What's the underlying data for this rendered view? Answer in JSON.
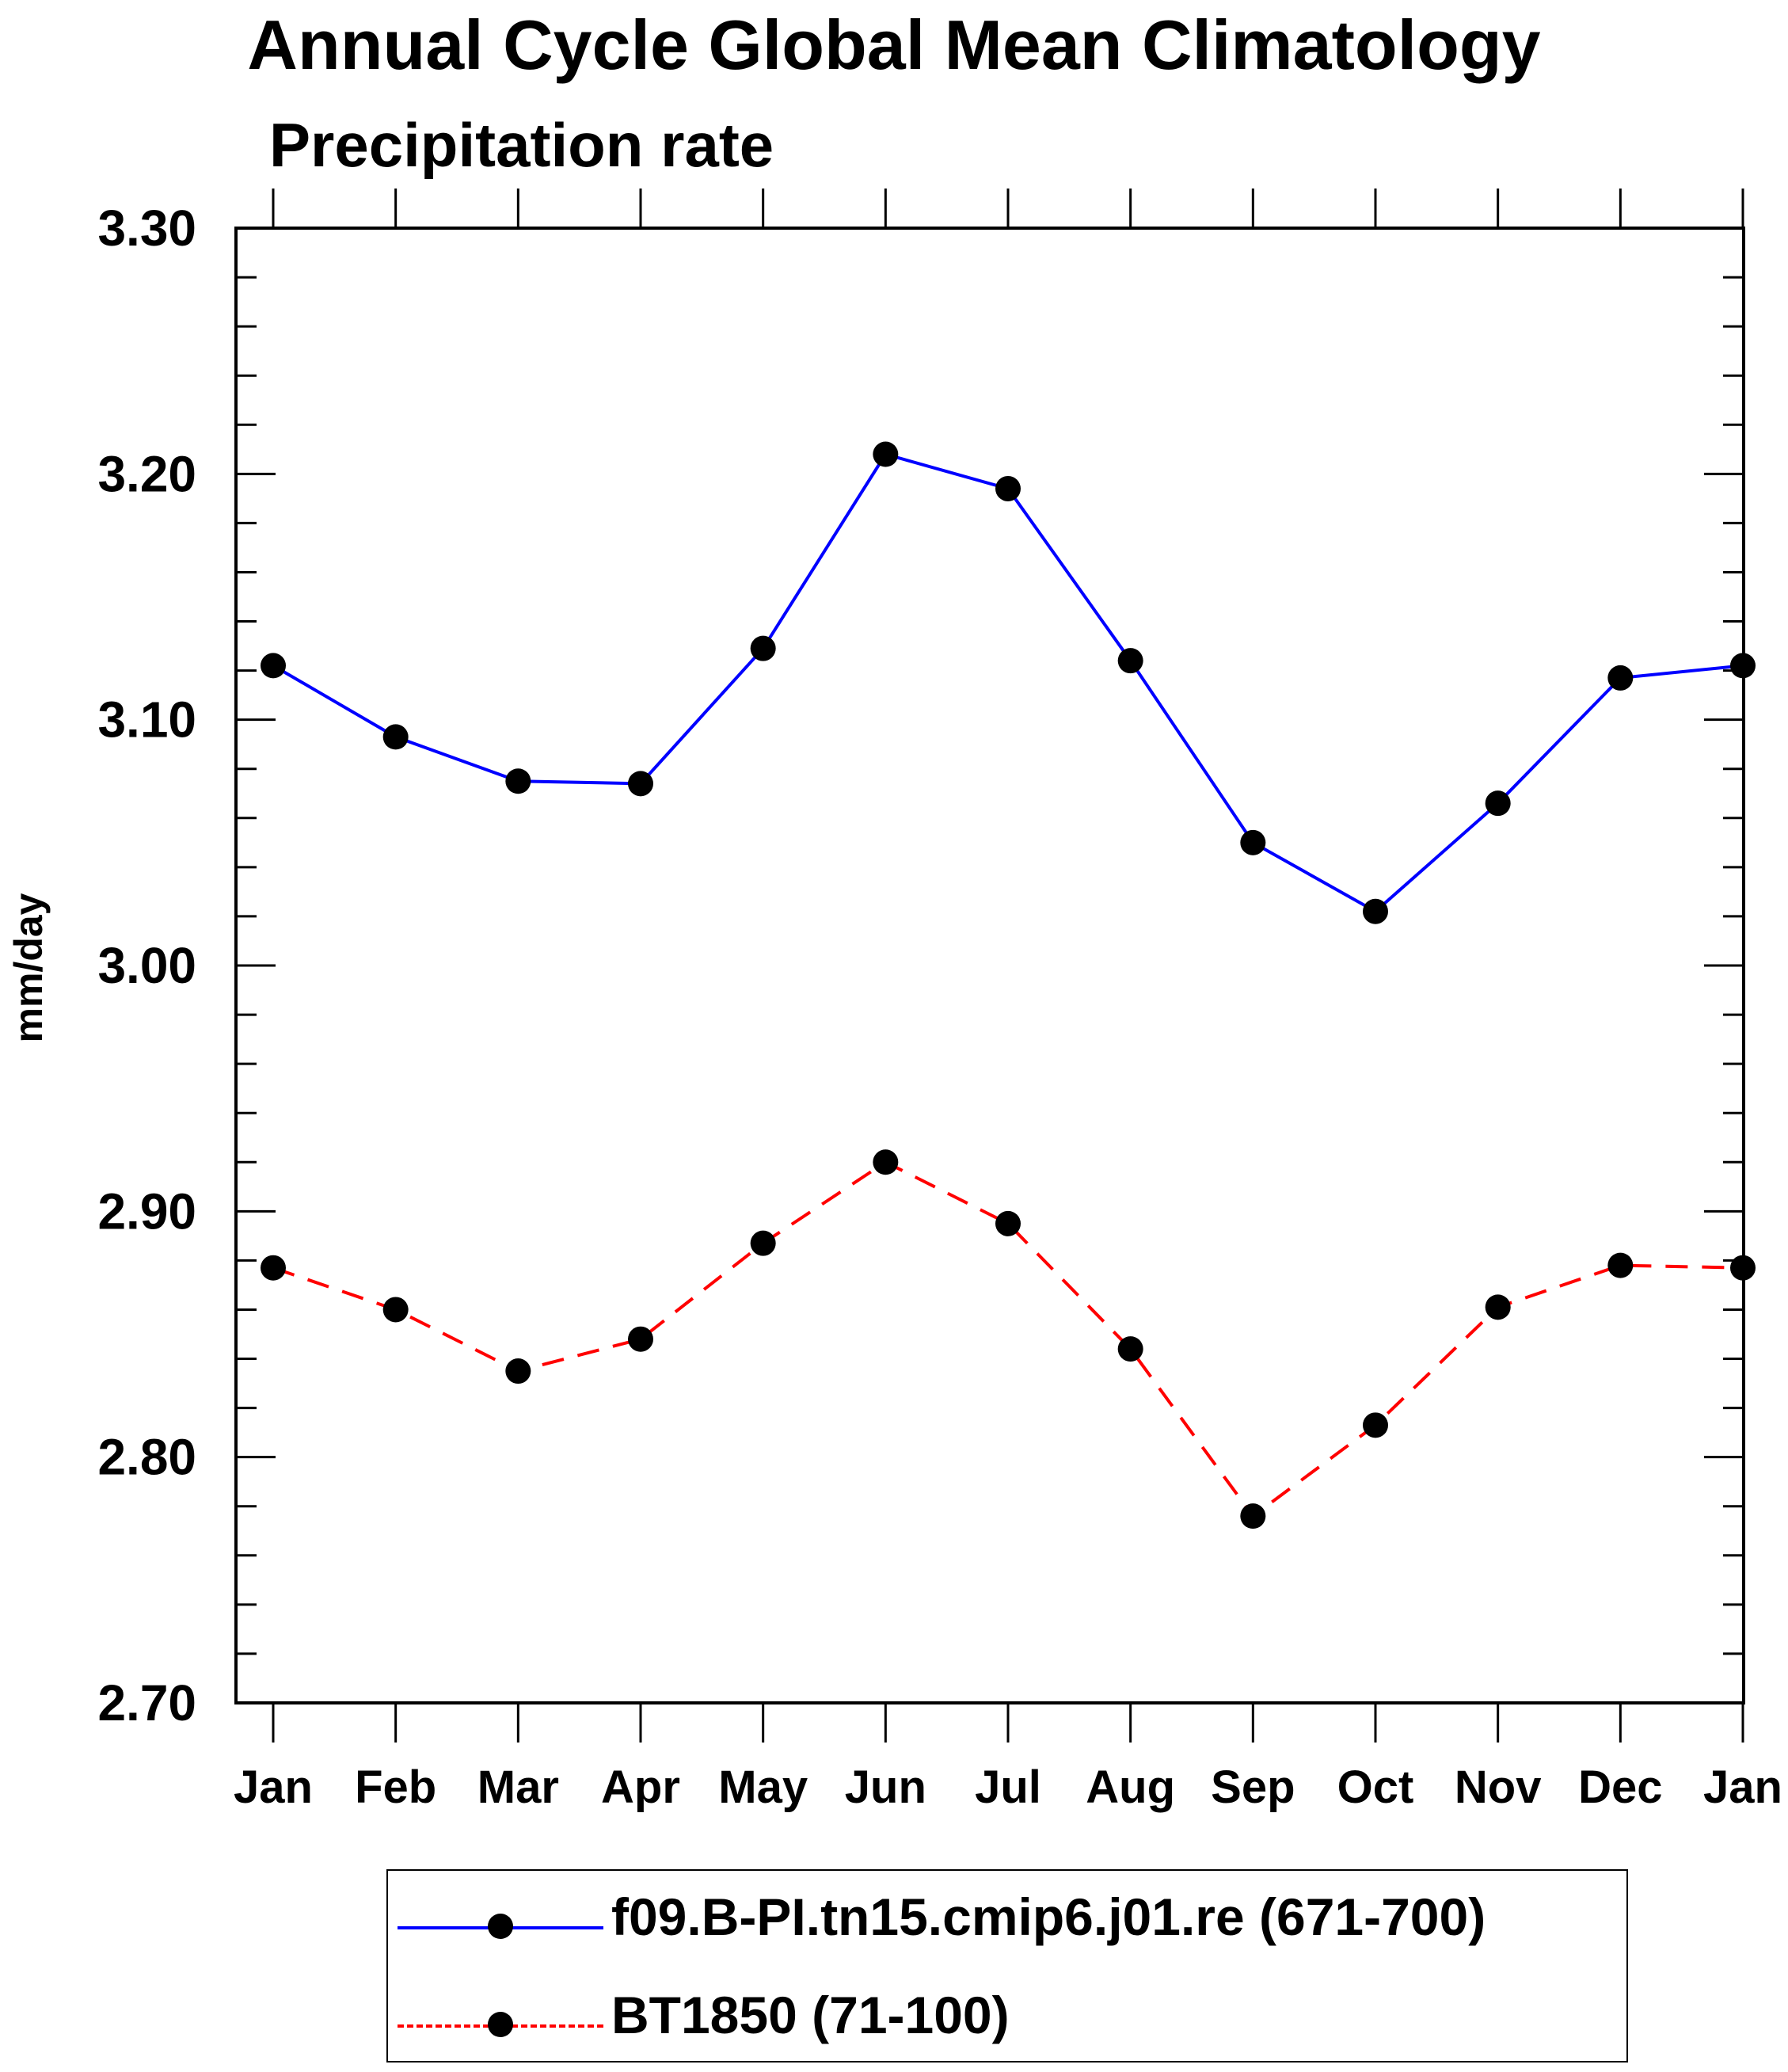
{
  "chart_data": {
    "type": "line",
    "title": "Annual Cycle Global Mean Climatology",
    "subtitle": "Precipitation rate",
    "xlabel": "",
    "ylabel": "mm/day",
    "categories": [
      "Jan",
      "Feb",
      "Mar",
      "Apr",
      "May",
      "Jun",
      "Jul",
      "Aug",
      "Sep",
      "Oct",
      "Nov",
      "Dec",
      "Jan"
    ],
    "ylim": [
      2.7,
      3.3
    ],
    "yticks": [
      "2.70",
      "2.80",
      "2.90",
      "3.00",
      "3.10",
      "3.20",
      "3.30"
    ],
    "series": [
      {
        "name": "f09.B-PI.tn15.cmip6.j01.re (671-700)",
        "color": "#0000ff",
        "line_style": "solid",
        "marker": "filled-circle",
        "values": [
          3.122,
          3.093,
          3.075,
          3.074,
          3.129,
          3.208,
          3.194,
          3.124,
          3.05,
          3.022,
          3.066,
          3.117,
          3.122
        ]
      },
      {
        "name": "BT1850 (71-100)",
        "color": "#ff0000",
        "line_style": "dashed",
        "marker": "filled-circle",
        "values": [
          2.877,
          2.86,
          2.835,
          2.848,
          2.887,
          2.92,
          2.895,
          2.844,
          2.776,
          2.813,
          2.861,
          2.878,
          2.877
        ]
      }
    ]
  }
}
